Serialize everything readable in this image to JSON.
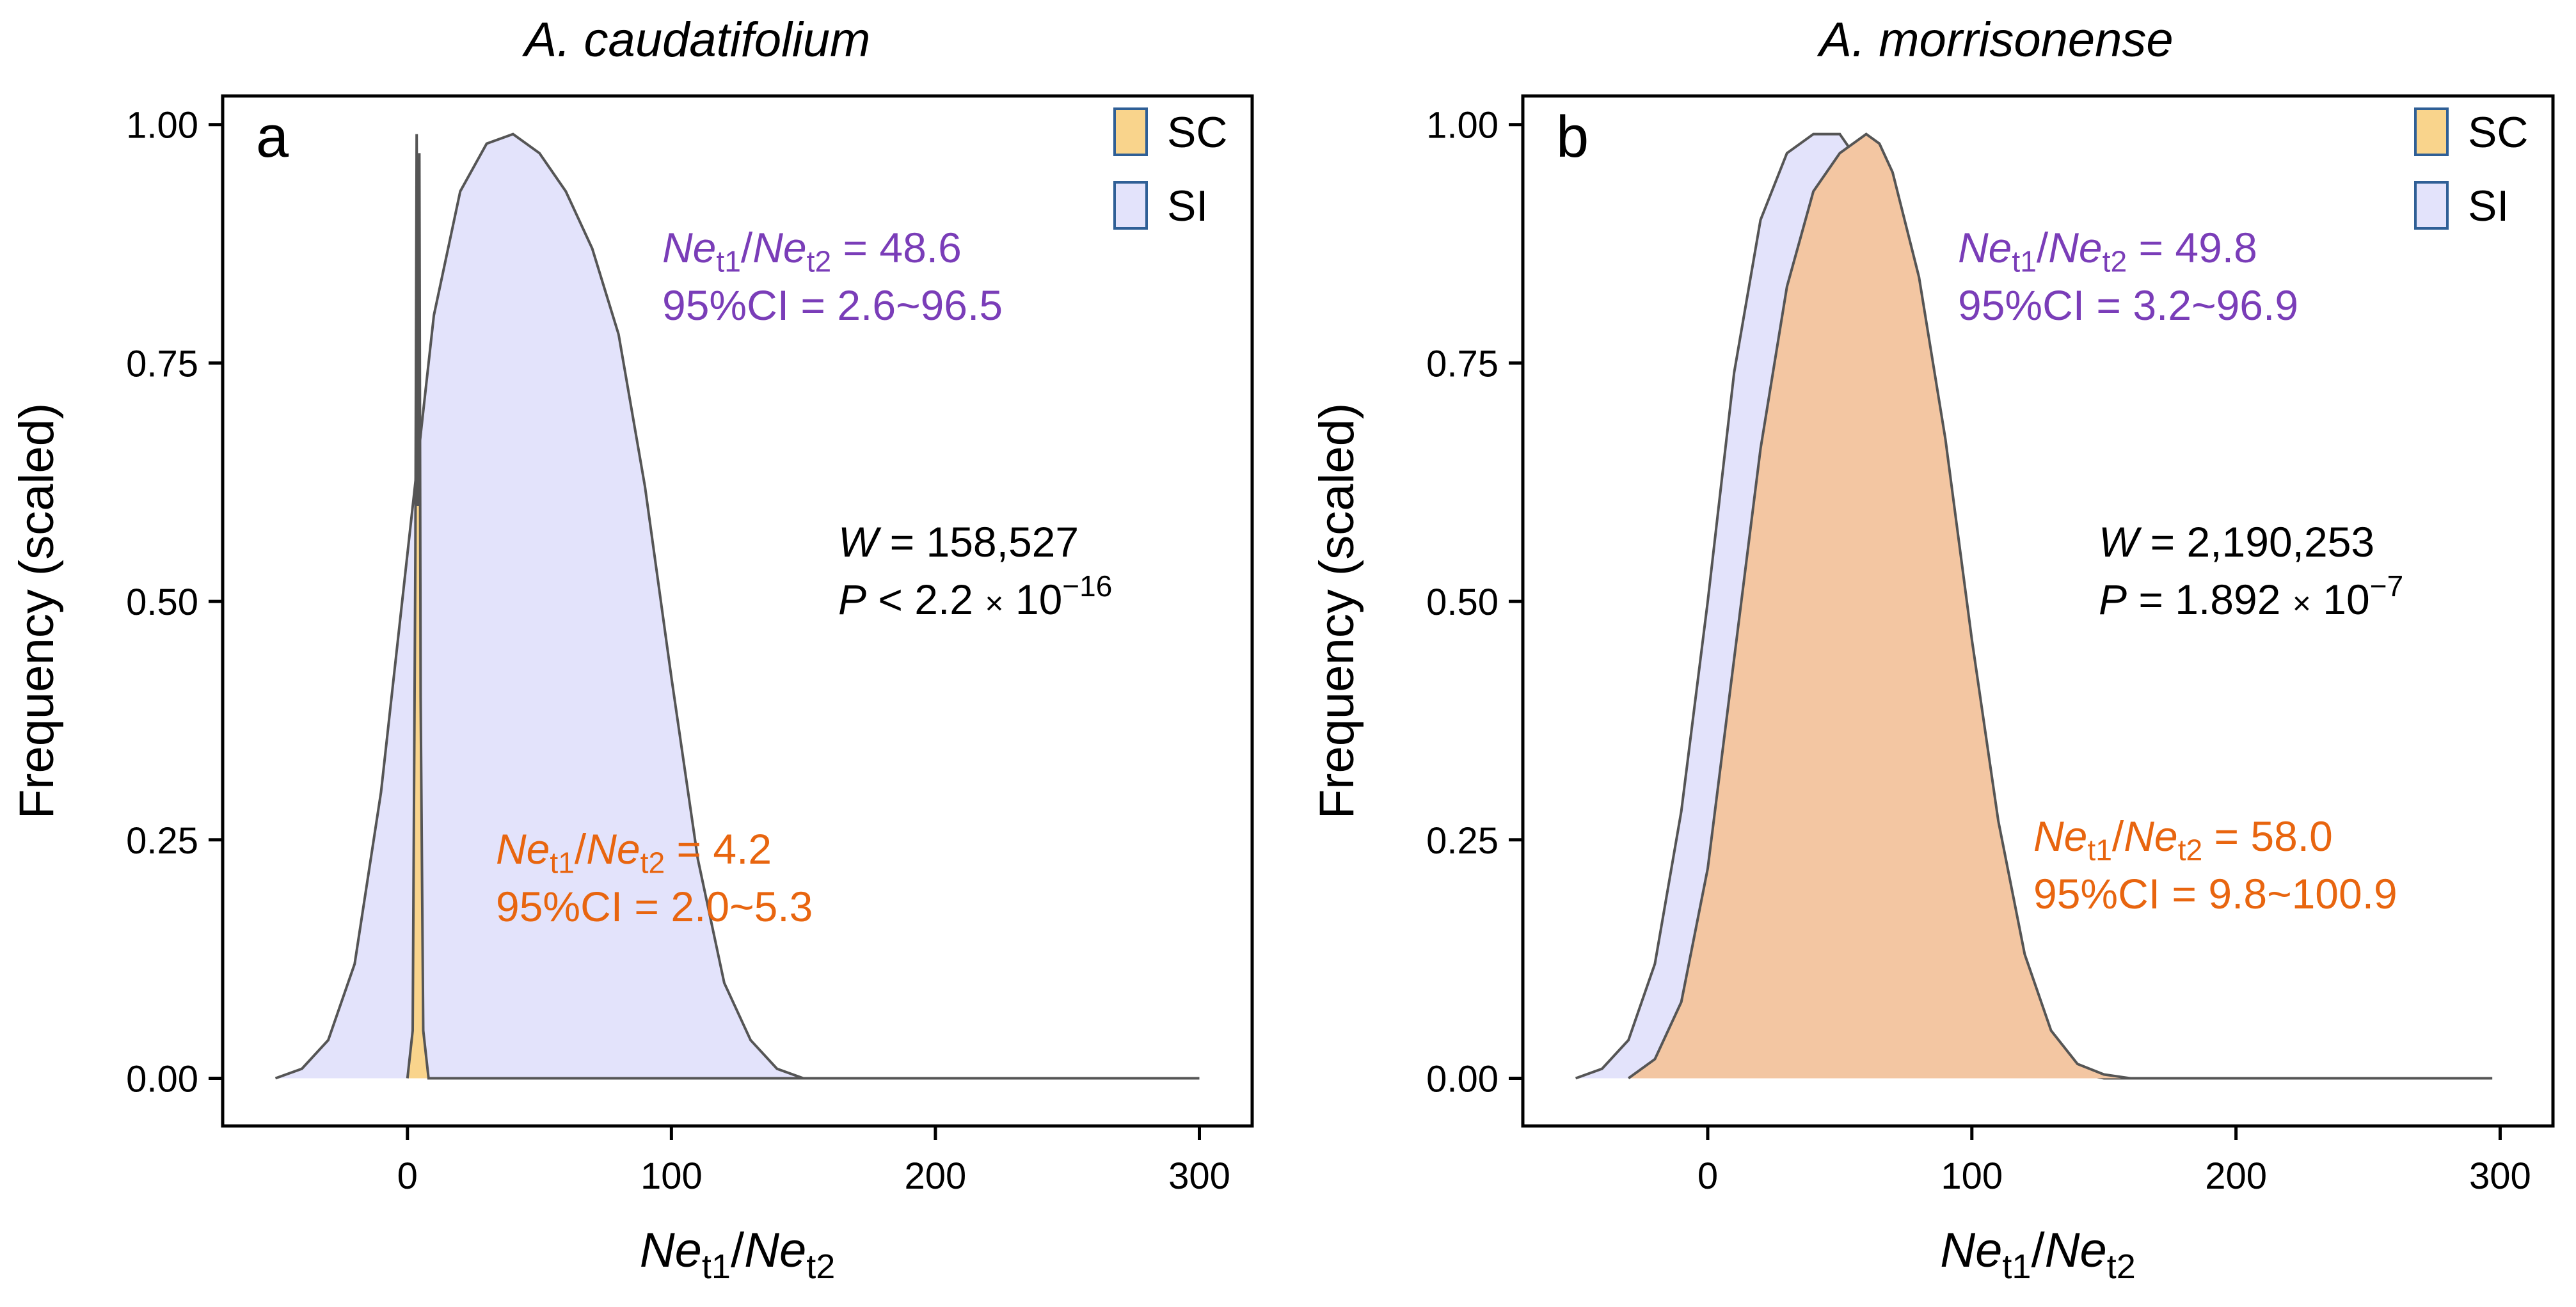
{
  "chart_data": [
    {
      "type": "area",
      "panel_label": "a",
      "title": "A. caudatifolium",
      "xlabel": "Net1/Net2",
      "ylabel": "Frequency (scaled)",
      "xlim": [
        -70,
        320
      ],
      "ylim": [
        -0.05,
        1.03
      ],
      "xticks": [
        0,
        100,
        200,
        300
      ],
      "yticks": [
        "0.00",
        "0.25",
        "0.50",
        "0.75",
        "1.00"
      ],
      "legend": [
        {
          "name": "SC",
          "color": "#f9d48c"
        },
        {
          "name": "SI",
          "color": "#e3e3fb"
        }
      ],
      "series": [
        {
          "name": "SI",
          "color": "#e3e3fb",
          "x": [
            -50,
            -40,
            -30,
            -20,
            -10,
            0,
            10,
            20,
            30,
            40,
            50,
            60,
            70,
            80,
            90,
            100,
            110,
            120,
            130,
            140,
            150,
            200,
            250,
            300
          ],
          "y": [
            0,
            0.01,
            0.04,
            0.12,
            0.3,
            0.55,
            0.8,
            0.93,
            0.98,
            0.99,
            0.97,
            0.93,
            0.87,
            0.78,
            0.62,
            0.42,
            0.23,
            0.1,
            0.04,
            0.01,
            0,
            0,
            0,
            0
          ]
        },
        {
          "name": "SC",
          "color": "#f9d48c",
          "x": [
            0,
            2,
            3,
            3.5,
            4,
            4.5,
            5,
            6,
            8,
            300
          ],
          "y": [
            0,
            0.05,
            0.55,
            0.99,
            0.6,
            0.97,
            0.4,
            0.05,
            0,
            0
          ]
        }
      ],
      "annotations": {
        "si_ratio_label": "Net1/Net2 = 48.6",
        "si_ci_label": "95%CI = 2.6~96.5",
        "sc_ratio_label": "Net1/Net2 = 4.2",
        "sc_ci_label": "95%CI = 2.0~5.3",
        "w_label": "W = 158,527",
        "p_label": "P < 2.2 × 10−16"
      },
      "values": {
        "si_ratio": "48.6",
        "si_ci": "2.6~96.5",
        "sc_ratio": "4.2",
        "sc_ci": "2.0~5.3",
        "w": "158,527",
        "p_mantissa": "2.2",
        "p_exponent": "−16",
        "p_op": "<"
      }
    },
    {
      "type": "area",
      "panel_label": "b",
      "title": "A. morrisonense",
      "xlabel": "Net1/Net2",
      "ylabel": "Frequency (scaled)",
      "xlim": [
        -70,
        320
      ],
      "ylim": [
        -0.05,
        1.03
      ],
      "xticks": [
        0,
        100,
        200,
        300
      ],
      "yticks": [
        "0.00",
        "0.25",
        "0.50",
        "0.75",
        "1.00"
      ],
      "legend": [
        {
          "name": "SC",
          "color": "#f9d48c"
        },
        {
          "name": "SI",
          "color": "#e3e3fb"
        }
      ],
      "series": [
        {
          "name": "SI",
          "color": "#e3e3fb",
          "x": [
            -50,
            -40,
            -30,
            -20,
            -10,
            0,
            10,
            20,
            30,
            40,
            50,
            60,
            70,
            80,
            90,
            100,
            110,
            120,
            130,
            140,
            150,
            160,
            200,
            250,
            297
          ],
          "y": [
            0,
            0.01,
            0.04,
            0.12,
            0.28,
            0.5,
            0.74,
            0.9,
            0.97,
            0.99,
            0.99,
            0.95,
            0.85,
            0.7,
            0.52,
            0.33,
            0.17,
            0.07,
            0.02,
            0.005,
            0,
            0,
            0,
            0,
            0
          ]
        },
        {
          "name": "SC",
          "color": "#f9d48c",
          "x": [
            -30,
            -20,
            -10,
            0,
            10,
            20,
            30,
            40,
            50,
            60,
            65,
            70,
            80,
            90,
            100,
            110,
            120,
            130,
            140,
            150,
            160,
            170,
            200,
            250,
            297
          ],
          "y": [
            0,
            0.02,
            0.08,
            0.22,
            0.44,
            0.66,
            0.83,
            0.93,
            0.97,
            0.99,
            0.98,
            0.95,
            0.84,
            0.67,
            0.46,
            0.27,
            0.13,
            0.05,
            0.015,
            0.004,
            0,
            0,
            0,
            0,
            0
          ]
        }
      ],
      "annotations": {
        "si_ratio_label": "Net1/Net2 = 49.8",
        "si_ci_label": "95%CI = 3.2~96.9",
        "sc_ratio_label": "Net1/Net2 = 58.0",
        "sc_ci_label": "95%CI = 9.8~100.9",
        "w_label": "W = 2,190,253",
        "p_label": "P = 1.892 × 10−7"
      },
      "values": {
        "si_ratio": "49.8",
        "si_ci": "3.2~96.9",
        "sc_ratio": "58.0",
        "sc_ci": "9.8~100.9",
        "w": "2,190,253",
        "p_mantissa": "1.892",
        "p_exponent": "−7",
        "p_op": "="
      }
    }
  ],
  "colors": {
    "si_text": "#7a3db8",
    "sc_text": "#e8650f",
    "si_fill": "#e3e3fb",
    "sc_fill": "#f9d48c",
    "overlap_fill": "#f3c6a2",
    "curve_stroke": "#555555",
    "legend_border": "#2f5f96",
    "axis": "#000000"
  },
  "labels": {
    "xlabel_main": "Ne",
    "xlabel_sub1": "t1",
    "xlabel_slash": "/",
    "xlabel_sub2": "t2",
    "ylabel": "Frequency (scaled)",
    "ci_prefix": "95%CI = ",
    "w_symbol": "W",
    "p_symbol": "P",
    "times": "×",
    "ten": " 10"
  }
}
